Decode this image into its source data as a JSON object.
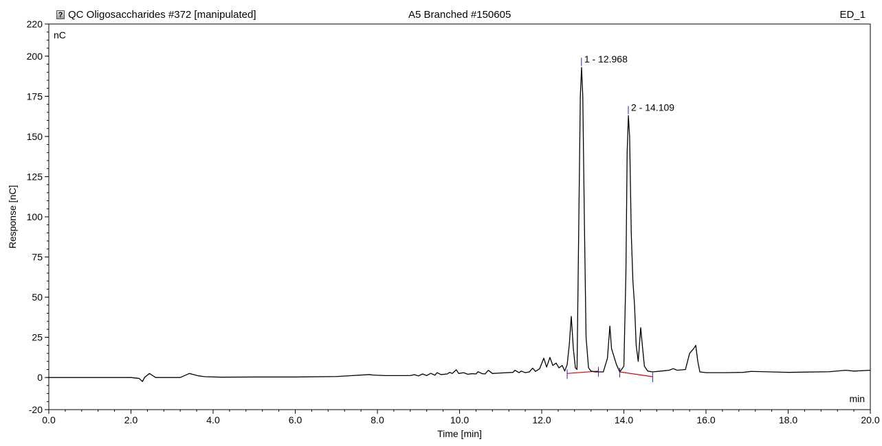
{
  "header": {
    "left_icon": "question-document-icon",
    "left_text": "QC Oligosaccharides #372 [manipulated]",
    "center_text": "A5 Branched #150605",
    "right_text": "ED_1"
  },
  "chart_data": {
    "type": "line",
    "title": "",
    "xlabel": "Time [min]",
    "ylabel": "Response [nC]",
    "x_unit": "min",
    "y_unit": "nC",
    "xlim": [
      0,
      20
    ],
    "ylim": [
      -20,
      220
    ],
    "x_ticks": [
      "0.0",
      "2.0",
      "4.0",
      "6.0",
      "8.0",
      "10.0",
      "12.0",
      "14.0",
      "16.0",
      "18.0",
      "20.0"
    ],
    "y_ticks": [
      "-20",
      "0",
      "25",
      "50",
      "75",
      "100",
      "125",
      "150",
      "175",
      "200",
      "220"
    ],
    "grid": false,
    "series": [
      {
        "color": "#000000",
        "x": [
          0.0,
          1.0,
          2.0,
          2.2,
          2.28,
          2.33,
          2.45,
          2.6,
          2.8,
          3.2,
          3.42,
          3.5,
          3.65,
          3.8,
          4.2,
          5.0,
          6.0,
          7.0,
          7.8,
          7.9,
          8.2,
          8.8,
          8.9,
          9.0,
          9.1,
          9.2,
          9.3,
          9.4,
          9.45,
          9.55,
          9.7,
          9.76,
          9.82,
          9.92,
          9.98,
          10.1,
          10.2,
          10.3,
          10.4,
          10.45,
          10.55,
          10.62,
          10.7,
          10.8,
          11.0,
          11.3,
          11.35,
          11.45,
          11.5,
          11.6,
          11.7,
          11.78,
          11.85,
          11.95,
          12.05,
          12.12,
          12.2,
          12.27,
          12.35,
          12.42,
          12.5,
          12.56,
          12.62,
          12.67,
          12.72,
          12.77,
          12.82,
          12.86,
          12.9,
          12.94,
          12.97,
          13.0,
          13.04,
          13.08,
          13.14,
          13.2,
          13.3,
          13.5,
          13.6,
          13.66,
          13.7,
          13.76,
          13.82,
          13.9,
          14.0,
          14.05,
          14.08,
          14.11,
          14.14,
          14.18,
          14.22,
          14.26,
          14.3,
          14.35,
          14.41,
          14.45,
          14.5,
          14.58,
          14.7,
          14.9,
          15.1,
          15.2,
          15.3,
          15.5,
          15.6,
          15.7,
          15.75,
          15.8,
          15.85,
          16.0,
          16.5,
          16.9,
          17.1,
          18.0,
          19.0,
          19.4,
          19.6,
          20.0
        ],
        "y": [
          0.0,
          0.0,
          0.0,
          -0.6,
          -2.5,
          0.0,
          2.5,
          0.0,
          0.0,
          0.0,
          2.5,
          2.0,
          1.0,
          0.5,
          0.2,
          0.3,
          0.3,
          0.6,
          1.8,
          1.5,
          1.2,
          1.2,
          1.8,
          1.0,
          2.2,
          1.2,
          2.6,
          1.4,
          3.0,
          1.8,
          2.2,
          3.2,
          2.5,
          4.8,
          2.5,
          3.0,
          2.0,
          2.4,
          2.2,
          3.6,
          2.4,
          2.2,
          4.5,
          2.5,
          2.8,
          3.2,
          4.5,
          3.0,
          4.0,
          3.0,
          3.5,
          5.8,
          3.8,
          5.5,
          12.0,
          6.5,
          12.5,
          7.5,
          9.0,
          6.0,
          7.5,
          4.0,
          8.0,
          20.0,
          38.0,
          18.0,
          6.0,
          5.0,
          90.0,
          175.0,
          193.0,
          175.0,
          95.0,
          25.0,
          6.0,
          4.0,
          3.5,
          3.5,
          12.0,
          32.0,
          18.0,
          13.0,
          8.0,
          3.5,
          7.0,
          65.0,
          140.0,
          163.0,
          150.0,
          90.0,
          60.0,
          45.0,
          20.0,
          10.0,
          31.0,
          20.0,
          7.0,
          4.0,
          3.5,
          4.0,
          4.5,
          5.5,
          4.5,
          5.0,
          15.0,
          18.0,
          20.0,
          10.0,
          3.5,
          3.0,
          3.0,
          3.2,
          3.8,
          3.2,
          3.6,
          4.5,
          4.0,
          4.5
        ]
      }
    ],
    "integration_baselines": [
      {
        "color": "#e00000",
        "x": [
          12.62,
          13.38
        ],
        "y": [
          2.5,
          4.0
        ]
      },
      {
        "color": "#e00000",
        "x": [
          13.9,
          14.7
        ],
        "y": [
          3.5,
          0.5
        ]
      }
    ],
    "delimiter_ticks": [
      {
        "x": 12.62,
        "y": 2.5
      },
      {
        "x": 13.38,
        "y": 4.0
      },
      {
        "x": 13.9,
        "y": 3.5
      },
      {
        "x": 14.7,
        "y": 0.5
      }
    ],
    "peaks": [
      {
        "label": "1 - 12.968",
        "x": 12.968,
        "y": 193
      },
      {
        "label": "2 - 14.109",
        "x": 14.109,
        "y": 163
      }
    ]
  }
}
